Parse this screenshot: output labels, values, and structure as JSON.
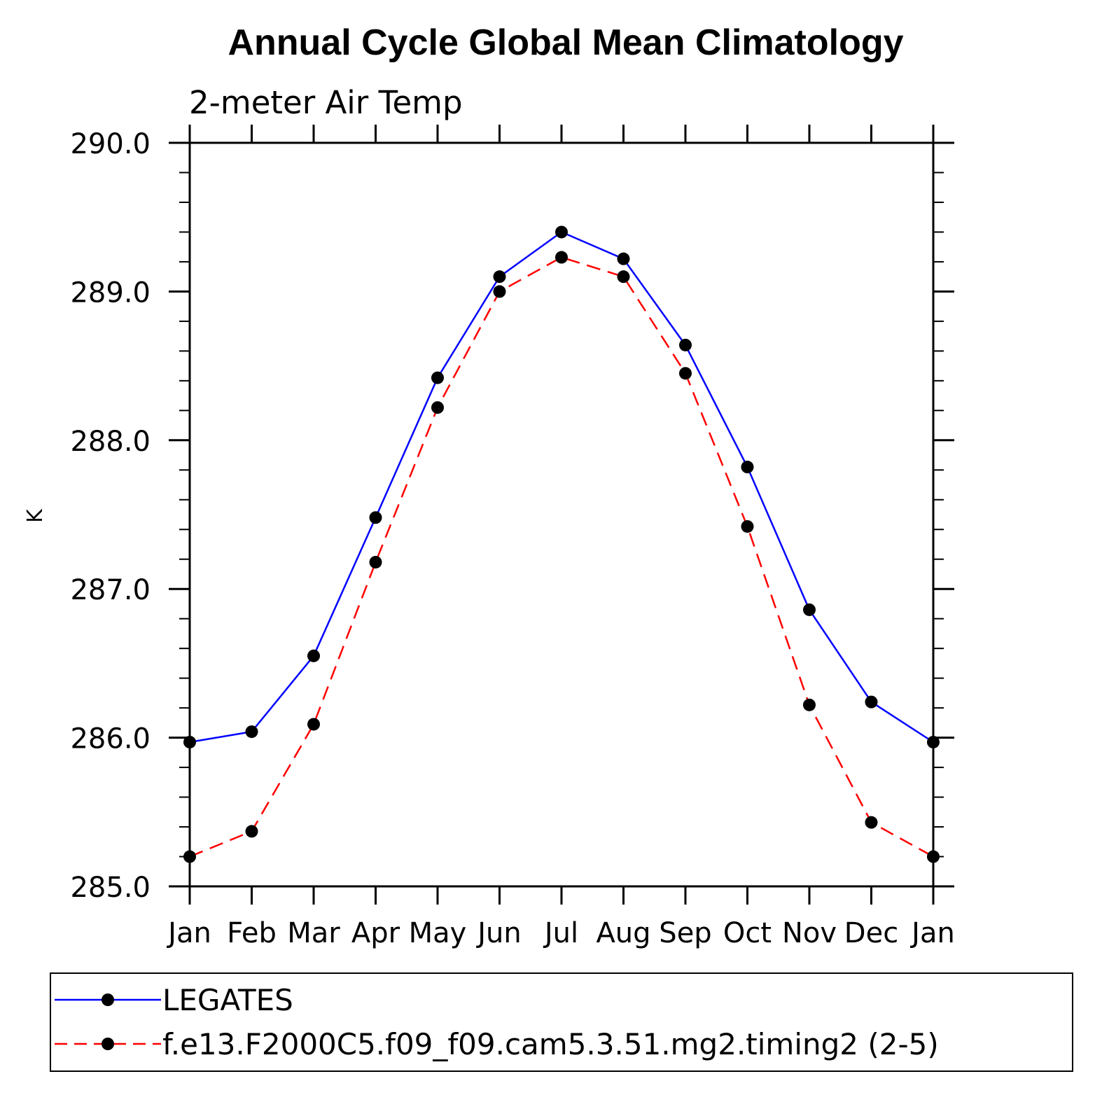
{
  "chart_data": {
    "type": "line",
    "title": "Annual Cycle Global Mean Climatology",
    "subtitle": "2-meter Air Temp",
    "xlabel": "",
    "ylabel": "K",
    "categories": [
      "Jan",
      "Feb",
      "Mar",
      "Apr",
      "May",
      "Jun",
      "Jul",
      "Aug",
      "Sep",
      "Oct",
      "Nov",
      "Dec",
      "Jan"
    ],
    "ylim": [
      285.0,
      290.0
    ],
    "yticks": [
      "285.0",
      "286.0",
      "287.0",
      "288.0",
      "289.0",
      "290.0"
    ],
    "grid": false,
    "legend_placement": "bottom",
    "series": [
      {
        "name": "LEGATES",
        "color": "#0000ff",
        "dash": "solid",
        "values": [
          285.97,
          286.04,
          286.55,
          287.48,
          288.42,
          289.1,
          289.4,
          289.22,
          288.64,
          287.82,
          286.86,
          286.24,
          285.97
        ]
      },
      {
        "name": "f.e13.F2000C5.f09_f09.cam5.3.51.mg2.timing2 (2-5)",
        "color": "#ff0000",
        "dash": "dashed",
        "values": [
          285.2,
          285.37,
          286.09,
          287.18,
          288.22,
          289.0,
          289.23,
          289.1,
          288.45,
          287.42,
          286.22,
          285.43,
          285.2
        ]
      }
    ]
  }
}
